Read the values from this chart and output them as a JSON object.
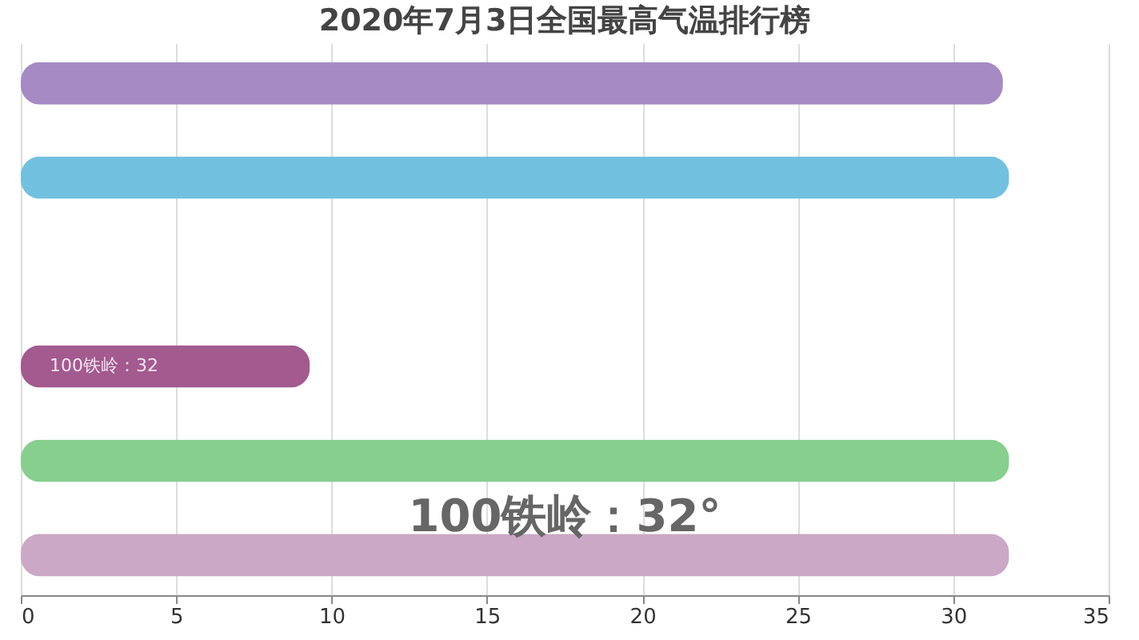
{
  "chart_data": {
    "type": "bar",
    "orientation": "horizontal",
    "title": "2020年7月3日全国最高气温排行榜",
    "categories": [
      null,
      null,
      null,
      null,
      null,
      null
    ],
    "values": [
      31.6,
      31.8,
      null,
      9.3,
      31.8,
      31.8
    ],
    "colors": [
      "#a58ac4",
      "#72c0e0",
      "#e0703a",
      "#a35a8f",
      "#86cf8e",
      "#cba8c6"
    ],
    "xlim": [
      0,
      35
    ],
    "xticks": [
      0,
      5,
      10,
      15,
      20,
      25,
      30,
      35
    ],
    "grid": "x",
    "tick_labels": "x",
    "annotations": [
      "100铁岭：32",
      "100铁岭：32°"
    ]
  }
}
